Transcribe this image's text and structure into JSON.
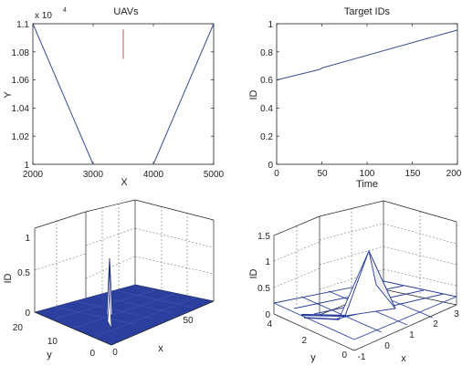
{
  "chart_data": [
    {
      "type": "line",
      "title": "UAVs",
      "xlabel": "X",
      "ylabel": "Y",
      "y_multiplier": "x 10",
      "y_exponent": "4",
      "xlim": [
        2000,
        5000
      ],
      "ylim": [
        1.0,
        1.1
      ],
      "xticks": [
        "2000",
        "3000",
        "4000",
        "5000"
      ],
      "yticks": [
        "1",
        "1.02",
        "1.04",
        "1.06",
        "1.08",
        "1.1"
      ],
      "grid": false,
      "series": [
        {
          "color": "#3a4f8f",
          "x": [
            2000,
            3000
          ],
          "y": [
            1.1,
            1.0
          ]
        },
        {
          "color": "#3a4f8f",
          "x": [
            4000,
            5000
          ],
          "y": [
            1.0,
            1.1
          ]
        },
        {
          "color": "#c0504d",
          "x": [
            3500,
            3500
          ],
          "y": [
            1.075,
            1.096
          ]
        }
      ]
    },
    {
      "type": "line",
      "title": "Target IDs",
      "xlabel": "Time",
      "ylabel": "ID",
      "xlim": [
        0,
        200
      ],
      "ylim": [
        0,
        1
      ],
      "xticks": [
        "0",
        "50",
        "100",
        "150",
        "200"
      ],
      "yticks": [
        "0",
        "0.2",
        "0.4",
        "0.6",
        "0.8",
        "1"
      ],
      "grid": false,
      "series": [
        {
          "color": "#3a4f8f",
          "x": [
            0,
            48,
            50,
            200
          ],
          "y": [
            0.6,
            0.675,
            0.685,
            0.955
          ]
        }
      ]
    },
    {
      "type": "surface",
      "xlabel": "x",
      "ylabel": "y",
      "zlabel": "ID",
      "xticks": [
        "0",
        "50"
      ],
      "yticks": [
        "0",
        "10",
        "20"
      ],
      "zticks": [
        "0",
        "0.5",
        "1"
      ],
      "grid": true,
      "surface_color": "#2b3f9e",
      "peaks": [
        {
          "x": 0,
          "y": 10,
          "z": 0.62
        }
      ]
    },
    {
      "type": "mesh",
      "xlabel": "x",
      "ylabel": "y",
      "zlabel": "ID",
      "xticks": [
        "-1",
        "0",
        "1",
        "2",
        "3"
      ],
      "yticks": [
        "0",
        "2",
        "4"
      ],
      "zticks": [
        "0",
        "0.5",
        "1",
        "1.5"
      ],
      "grid": true,
      "mesh_color": "#2b3f9e",
      "peaks": [
        {
          "x": 1,
          "y": 2,
          "z": 1.0
        }
      ]
    }
  ]
}
